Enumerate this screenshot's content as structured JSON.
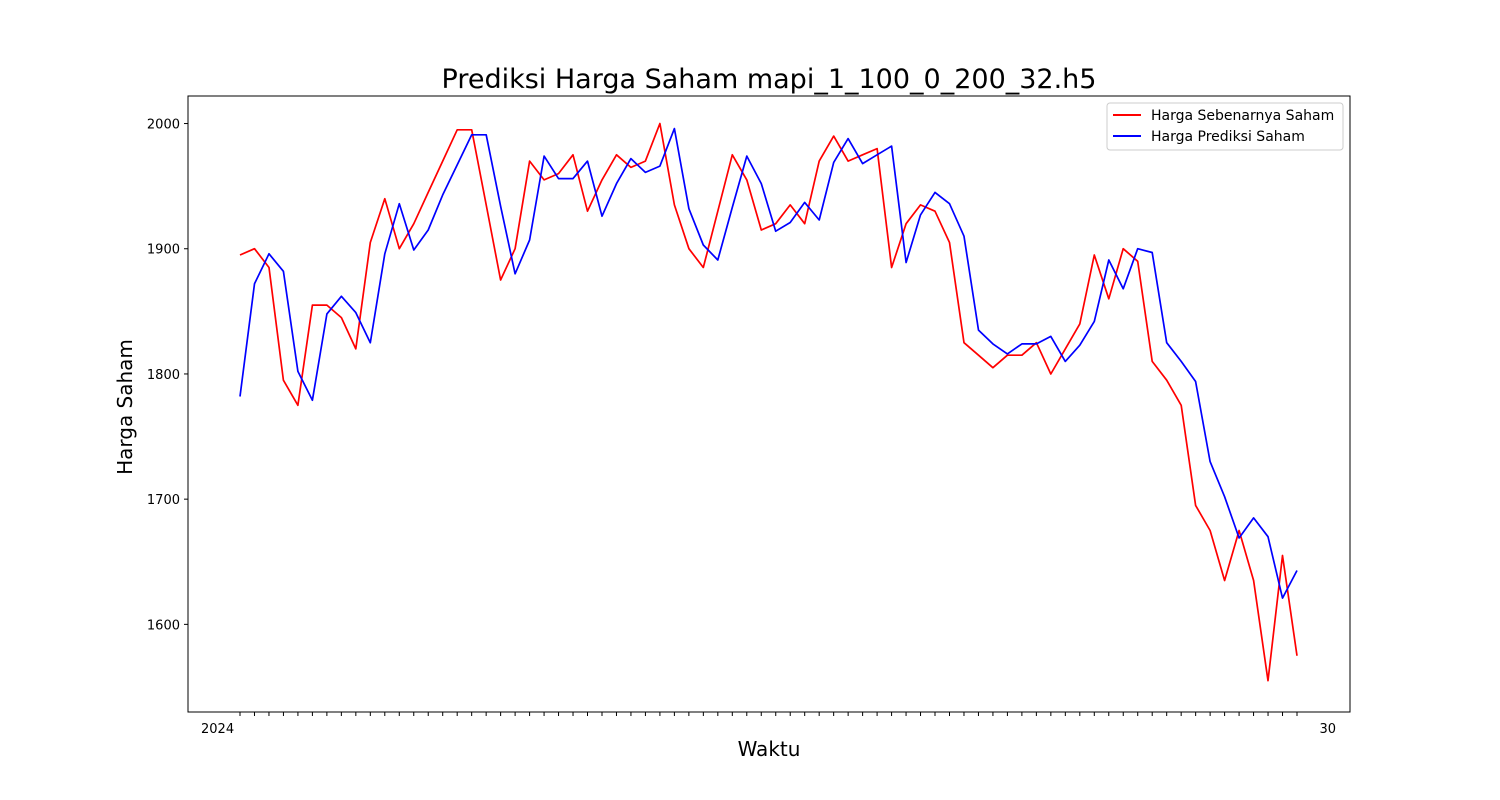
{
  "chart_data": {
    "type": "line",
    "title": "Prediksi Harga Saham mapi_1_100_0_200_32.h5",
    "xlabel": "Waktu",
    "ylabel": "Harga Saham",
    "ylim": [
      1530,
      2022
    ],
    "yticks": [
      1600,
      1700,
      1800,
      1900,
      2000
    ],
    "x_tick_label_first": "2024",
    "x_tick_label_last": "30",
    "grid": false,
    "legend_position": "top-right",
    "series": [
      {
        "name": "Harga Sebenarnya Saham",
        "color": "#ff0000",
        "values": [
          1895,
          1900,
          1885,
          1795,
          1775,
          1855,
          1855,
          1845,
          1820,
          1905,
          1940,
          1900,
          1920,
          1945,
          1970,
          1995,
          1995,
          1935,
          1875,
          1900,
          1970,
          1955,
          1960,
          1975,
          1930,
          1955,
          1975,
          1965,
          1970,
          2000,
          1935,
          1900,
          1885,
          1930,
          1975,
          1955,
          1915,
          1920,
          1935,
          1920,
          1970,
          1990,
          1970,
          1975,
          1980,
          1885,
          1920,
          1935,
          1930,
          1905,
          1825,
          1815,
          1805,
          1815,
          1815,
          1825,
          1800,
          1820,
          1840,
          1895,
          1860,
          1900,
          1890,
          1810,
          1795,
          1775,
          1695,
          1675,
          1635,
          1675,
          1635,
          1555,
          1655,
          1575
        ]
      },
      {
        "name": "Harga Prediksi Saham",
        "color": "#0000ff",
        "values": [
          1782,
          1872,
          1896,
          1882,
          1802,
          1779,
          1848,
          1862,
          1849,
          1825,
          1896,
          1936,
          1899,
          1915,
          1943,
          1967,
          1991,
          1991,
          1934,
          1880,
          1907,
          1974,
          1956,
          1956,
          1970,
          1926,
          1952,
          1972,
          1961,
          1966,
          1996,
          1932,
          1903,
          1891,
          1933,
          1974,
          1952,
          1914,
          1921,
          1937,
          1923,
          1969,
          1988,
          1968,
          1975,
          1982,
          1889,
          1927,
          1945,
          1936,
          1910,
          1835,
          1824,
          1816,
          1824,
          1824,
          1830,
          1810,
          1823,
          1842,
          1891,
          1868,
          1900,
          1897,
          1825,
          1810,
          1794,
          1730,
          1702,
          1669,
          1685,
          1670,
          1621,
          1643
        ]
      }
    ]
  }
}
